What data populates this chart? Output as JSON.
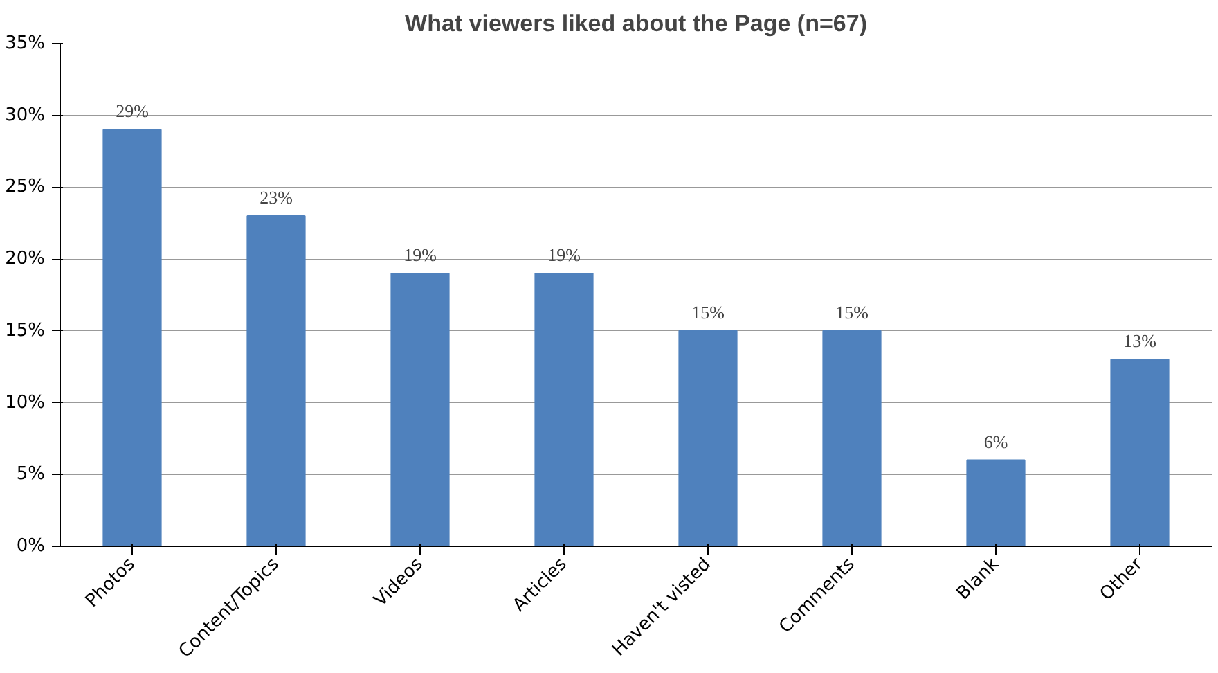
{
  "chart_data": {
    "type": "bar",
    "title": "What viewers liked about the Page (n=67)",
    "categories": [
      "Photos",
      "Content/Topics",
      "Videos",
      "Articles",
      "Haven't visted",
      "Comments",
      "Blank",
      "Other"
    ],
    "values": [
      29,
      23,
      19,
      19,
      15,
      15,
      6,
      13
    ],
    "value_labels": [
      "29%",
      "23%",
      "19%",
      "19%",
      "15%",
      "15%",
      "6%",
      "13%"
    ],
    "color": "#4f81bd",
    "ylim": [
      0,
      35
    ],
    "yticks": [
      {
        "value": 0,
        "label": "0%"
      },
      {
        "value": 5,
        "label": "5%"
      },
      {
        "value": 10,
        "label": "10%"
      },
      {
        "value": 15,
        "label": "15%"
      },
      {
        "value": 20,
        "label": "20%"
      },
      {
        "value": 25,
        "label": "25%"
      },
      {
        "value": 30,
        "label": "30%"
      },
      {
        "value": 35,
        "label": "35%"
      }
    ],
    "grid": "y"
  }
}
